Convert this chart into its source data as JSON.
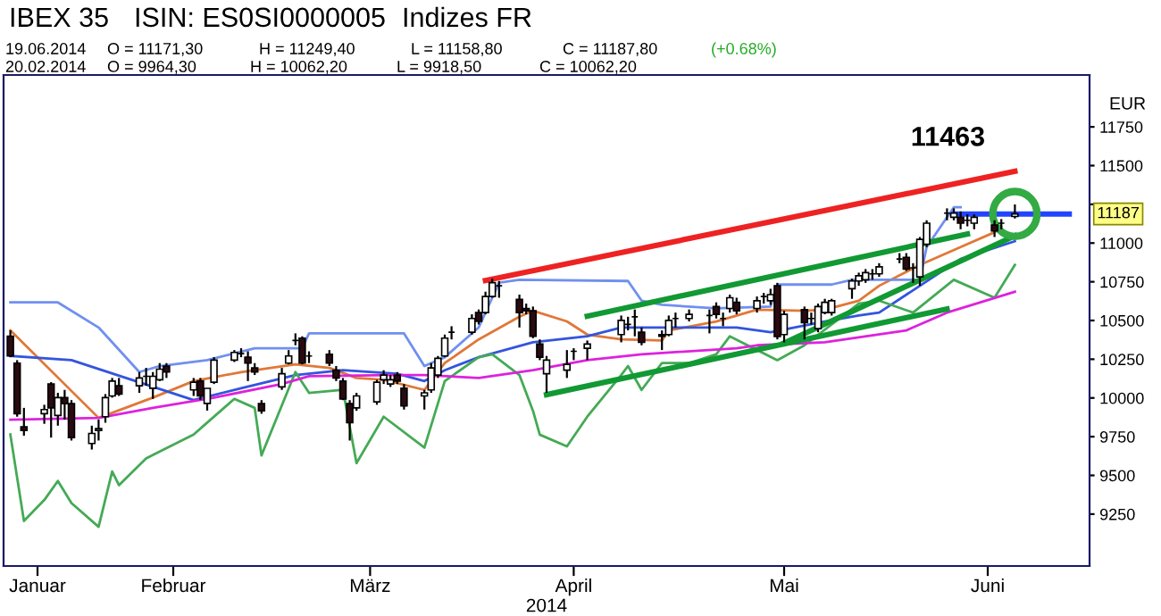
{
  "chart_data": {
    "type": "candlestick",
    "title": "IBEX 35",
    "xlabel": "2014",
    "ylabel": "EUR",
    "x": [
      "2014-01-22",
      "2014-01-23",
      "2014-01-24",
      "2014-01-27",
      "2014-01-28",
      "2014-01-29",
      "2014-01-30",
      "2014-01-31",
      "2014-02-03",
      "2014-02-04",
      "2014-02-05",
      "2014-02-06",
      "2014-02-07",
      "2014-02-10",
      "2014-02-11",
      "2014-02-12",
      "2014-02-13",
      "2014-02-14",
      "2014-02-18",
      "2014-02-19",
      "2014-02-20",
      "2014-02-21",
      "2014-02-24",
      "2014-02-25",
      "2014-02-26",
      "2014-02-27",
      "2014-02-28",
      "2014-03-03",
      "2014-03-04",
      "2014-03-05",
      "2014-03-06",
      "2014-03-07",
      "2014-03-10",
      "2014-03-11",
      "2014-03-12",
      "2014-03-13",
      "2014-03-14",
      "2014-03-17",
      "2014-03-18",
      "2014-03-19",
      "2014-03-20",
      "2014-03-21",
      "2014-03-24",
      "2014-03-25",
      "2014-03-26",
      "2014-03-27",
      "2014-03-28",
      "2014-03-31",
      "2014-04-01",
      "2014-04-02",
      "2014-04-03",
      "2014-04-04",
      "2014-04-07",
      "2014-04-08",
      "2014-04-09",
      "2014-04-10",
      "2014-04-11",
      "2014-04-14",
      "2014-04-15",
      "2014-04-17",
      "2014-04-22",
      "2014-04-23",
      "2014-04-24",
      "2014-04-25",
      "2014-04-28",
      "2014-04-29",
      "2014-04-30",
      "2014-05-02",
      "2014-05-05",
      "2014-05-06",
      "2014-05-07",
      "2014-05-08",
      "2014-05-09",
      "2014-05-12",
      "2014-05-13",
      "2014-05-14",
      "2014-05-15",
      "2014-05-16",
      "2014-05-19",
      "2014-05-20",
      "2014-05-21",
      "2014-05-22",
      "2014-05-23",
      "2014-05-26",
      "2014-05-27",
      "2014-05-28",
      "2014-05-29",
      "2014-05-30",
      "2014-06-02",
      "2014-06-03",
      "2014-06-04",
      "2014-06-05",
      "2014-06-06",
      "2014-06-09",
      "2014-06-10",
      "2014-06-11",
      "2014-06-12",
      "2014-06-13",
      "2014-06-16",
      "2014-06-17",
      "2014-06-19"
    ],
    "ohlc": [
      [
        10398,
        10436,
        10263,
        10271
      ],
      [
        10225,
        10244,
        9879,
        9898
      ],
      [
        9813,
        9936,
        9756,
        9790
      ],
      [
        9898,
        9956,
        9833,
        9925
      ],
      [
        10090,
        10102,
        9744,
        9936
      ],
      [
        9887,
        10033,
        9821,
        10002
      ],
      [
        10002,
        10052,
        9860,
        9963
      ],
      [
        9963,
        9986,
        9725,
        9744
      ],
      [
        9706,
        9821,
        9667,
        9771
      ],
      [
        9790,
        9860,
        9725,
        9802
      ],
      [
        9879,
        10025,
        9840,
        10002
      ],
      [
        10013,
        10129,
        10002,
        10109
      ],
      [
        10079,
        10129,
        10013,
        10025
      ],
      [
        10079,
        10167,
        10033,
        10129
      ],
      [
        10140,
        10194,
        10079,
        10140
      ],
      [
        10063,
        10167,
        9994,
        10140
      ],
      [
        10117,
        10225,
        10109,
        10186
      ],
      [
        10206,
        10225,
        10129,
        10167
      ],
      [
        10052,
        10129,
        10013,
        10102
      ],
      [
        10109,
        10129,
        9986,
        10013
      ],
      [
        9964.3,
        10062.2,
        9918.5,
        10062.2
      ],
      [
        10102,
        10263,
        10090,
        10244
      ],
      [
        10244,
        10309,
        10232,
        10294
      ],
      [
        10286,
        10321,
        10263,
        10286
      ],
      [
        10263,
        10301,
        10109,
        10225
      ],
      [
        10194,
        10225,
        10148,
        10167
      ],
      [
        9963,
        9986,
        9898,
        9917
      ],
      [
        10071,
        10194,
        10052,
        10156
      ],
      [
        10225,
        10309,
        10217,
        10271
      ],
      [
        10371,
        10417,
        10340,
        10371
      ],
      [
        10386,
        10398,
        10217,
        10225
      ],
      [
        10271,
        10301,
        10225,
        10271
      ],
      [
        10282,
        10309,
        10206,
        10225
      ],
      [
        10179,
        10206,
        10109,
        10129
      ],
      [
        10109,
        10129,
        9986,
        9994
      ],
      [
        9963,
        9986,
        9725,
        9840
      ],
      [
        9936,
        10033,
        9917,
        10013
      ],
      [
        9975,
        10117,
        9956,
        10102
      ],
      [
        10117,
        10179,
        10090,
        10148
      ],
      [
        10090,
        10148,
        10071,
        10117
      ],
      [
        10148,
        10167,
        10090,
        10109
      ],
      [
        10063,
        10090,
        9925,
        9948
      ],
      [
        10013,
        10052,
        9925,
        10033
      ],
      [
        10052,
        10225,
        10033,
        10194
      ],
      [
        10148,
        10271,
        10129,
        10256
      ],
      [
        10271,
        10409,
        10263,
        10386
      ],
      [
        10424,
        10463,
        10378,
        10424
      ],
      [
        10424,
        10540,
        10409,
        10513
      ],
      [
        10551,
        10571,
        10474,
        10494
      ],
      [
        10551,
        10686,
        10540,
        10655
      ],
      [
        10655,
        10770,
        10647,
        10744
      ],
      [
        10724,
        10755,
        10647,
        10724
      ],
      [
        10636,
        10667,
        10455,
        10551
      ],
      [
        10578,
        10609,
        10540,
        10563
      ],
      [
        10563,
        10590,
        10386,
        10398
      ],
      [
        10348,
        10378,
        10244,
        10263
      ],
      [
        10156,
        10271,
        10033,
        10244
      ],
      [
        10179,
        10309,
        10129,
        10217
      ],
      [
        10301,
        10321,
        10244,
        10301
      ],
      [
        10321,
        10371,
        10244,
        10348
      ],
      [
        10409,
        10532,
        10359,
        10501
      ],
      [
        10475,
        10524,
        10436,
        10475
      ],
      [
        10524,
        10571,
        10398,
        10524
      ],
      [
        10424,
        10455,
        10340,
        10359
      ],
      [
        10409,
        10436,
        10309,
        10398
      ],
      [
        10409,
        10532,
        10398,
        10501
      ],
      [
        10513,
        10551,
        10455,
        10513
      ],
      [
        10513,
        10571,
        10494,
        10540
      ],
      [
        10532,
        10571,
        10417,
        10532
      ],
      [
        10590,
        10617,
        10513,
        10540
      ],
      [
        10513,
        10551,
        10463,
        10513
      ],
      [
        10578,
        10667,
        10551,
        10647
      ],
      [
        10617,
        10647,
        10540,
        10563
      ],
      [
        10578,
        10655,
        10551,
        10628
      ],
      [
        10655,
        10678,
        10609,
        10655
      ],
      [
        10628,
        10705,
        10601,
        10667
      ],
      [
        10724,
        10743,
        10378,
        10397
      ],
      [
        10409,
        10563,
        10359,
        10540
      ],
      [
        10570,
        10590,
        10378,
        10486
      ],
      [
        10513,
        10551,
        10474,
        10513
      ],
      [
        10447,
        10609,
        10424,
        10590
      ],
      [
        10551,
        10640,
        10540,
        10617
      ],
      [
        10551,
        10640,
        10532,
        10628
      ],
      [
        10705,
        10770,
        10640,
        10755
      ],
      [
        10755,
        10809,
        10724,
        10789
      ],
      [
        10763,
        10832,
        10743,
        10809
      ],
      [
        10801,
        10832,
        10763,
        10801
      ],
      [
        10801,
        10870,
        10782,
        10847
      ],
      [
        10897,
        10935,
        10870,
        10897
      ],
      [
        10908,
        10935,
        10820,
        10832
      ],
      [
        10840,
        10870,
        10743,
        10840
      ],
      [
        10782,
        11039,
        10724,
        11024
      ],
      [
        10993,
        11147,
        10974,
        11128
      ],
      [
        11193,
        11224,
        11147,
        11193
      ],
      [
        11166,
        11224,
        11147,
        11193
      ],
      [
        11166,
        11204,
        11089,
        11128
      ],
      [
        11147,
        11185,
        11108,
        11147
      ],
      [
        11128,
        11185,
        11089,
        11166
      ],
      [
        11116,
        11147,
        11039,
        11078
      ],
      [
        11128,
        11155,
        11089,
        11128
      ],
      [
        11171.3,
        11249.4,
        11158.8,
        11187.8
      ]
    ],
    "series": [
      {
        "type": "line",
        "color": "#e07838",
        "x": [
          "2014-01-22",
          "2014-02-04",
          "2014-02-12",
          "2014-02-18",
          "2014-02-25",
          "2014-03-05",
          "2014-03-10",
          "2014-03-14",
          "2014-03-18",
          "2014-03-24",
          "2014-03-27",
          "2014-04-01",
          "2014-04-07",
          "2014-04-09",
          "2014-04-14",
          "2014-04-17",
          "2014-04-22",
          "2014-04-28",
          "2014-04-29",
          "2014-05-06",
          "2014-05-12",
          "2014-05-19",
          "2014-05-22",
          "2014-05-27",
          "2014-05-30",
          "2014-06-05",
          "2014-06-11",
          "2014-06-16",
          "2014-06-17"
        ],
        "values": [
          10436,
          9871,
          10002,
          10109,
          10167,
          10217,
          10194,
          10129,
          10117,
          10052,
          10225,
          10378,
          10524,
          10563,
          10494,
          10409,
          10378,
          10371,
          10436,
          10494,
          10570,
          10563,
          10570,
          10628,
          10724,
          10859,
          10974,
          11070,
          11108
        ]
      },
      {
        "type": "line",
        "color": "#7090f0",
        "x": [
          "2014-01-22",
          "2014-01-29",
          "2014-02-04",
          "2014-02-10",
          "2014-02-13",
          "2014-02-20",
          "2014-02-27",
          "2014-03-06",
          "2014-03-07",
          "2014-03-21",
          "2014-03-24",
          "2014-03-27",
          "2014-04-01",
          "2014-04-04",
          "2014-04-07",
          "2014-04-23",
          "2014-04-25",
          "2014-04-28",
          "2014-05-06",
          "2014-05-14",
          "2014-05-15",
          "2014-05-23",
          "2014-05-26",
          "2014-06-05",
          "2014-06-06",
          "2014-06-10",
          "2014-06-11"
        ],
        "values": [
          10617,
          10617,
          10455,
          10167,
          10206,
          10244,
          10321,
          10321,
          10417,
          10417,
          10206,
          10263,
          10455,
          10744,
          10763,
          10755,
          10628,
          10601,
          10578,
          10590,
          10732,
          10732,
          10763,
          10763,
          10974,
          11231,
          11231
        ]
      },
      {
        "type": "line",
        "color": "#3355dd",
        "x": [
          "2014-01-22",
          "2014-01-31",
          "2014-02-18",
          "2014-02-25",
          "2014-03-05",
          "2014-03-12",
          "2014-03-20",
          "2014-03-24",
          "2014-03-27",
          "2014-04-01",
          "2014-04-09",
          "2014-04-17",
          "2014-04-22",
          "2014-05-09",
          "2014-05-14",
          "2014-05-22",
          "2014-05-27",
          "2014-05-30",
          "2014-06-05",
          "2014-06-11",
          "2014-06-19"
        ],
        "values": [
          10271,
          10244,
          9986,
          10063,
          10148,
          10179,
          10156,
          10109,
          10179,
          10263,
          10359,
          10398,
          10455,
          10455,
          10424,
          10494,
          10532,
          10551,
          10724,
          10897,
          11012
        ]
      },
      {
        "type": "line",
        "color": "#44aa55",
        "x": [
          "2014-01-22",
          "2014-01-24",
          "2014-01-27",
          "2014-01-29",
          "2014-01-31",
          "2014-02-04",
          "2014-02-06",
          "2014-02-07",
          "2014-02-11",
          "2014-02-18",
          "2014-02-20",
          "2014-02-24",
          "2014-02-27",
          "2014-02-28",
          "2014-03-05",
          "2014-03-07",
          "2014-03-12",
          "2014-03-14",
          "2014-03-18",
          "2014-03-24",
          "2014-03-27",
          "2014-04-01",
          "2014-04-03",
          "2014-04-07",
          "2014-04-09",
          "2014-04-10",
          "2014-04-14",
          "2014-04-17",
          "2014-04-22",
          "2014-04-23",
          "2014-04-25",
          "2014-04-28",
          "2014-05-02",
          "2014-05-06",
          "2014-05-08",
          "2014-05-15",
          "2014-05-19",
          "2014-05-27",
          "2014-05-30",
          "2014-06-04",
          "2014-06-10",
          "2014-06-16",
          "2014-06-19"
        ],
        "values": [
          9764,
          9206,
          9341,
          9464,
          9321,
          9168,
          9525,
          9437,
          9610,
          9764,
          9841,
          9994,
          9936,
          9629,
          10167,
          10033,
          10052,
          9579,
          9879,
          9679,
          10109,
          10263,
          10282,
          10148,
          9917,
          9763,
          9687,
          9879,
          10148,
          10206,
          10052,
          10225,
          10225,
          10282,
          10398,
          10244,
          10340,
          10609,
          10628,
          10551,
          10763,
          10647,
          10859
        ]
      },
      {
        "type": "line",
        "color": "#dd22dd",
        "x": [
          "2014-01-22",
          "2014-02-04",
          "2014-02-12",
          "2014-02-21",
          "2014-03-03",
          "2014-03-07",
          "2014-03-19",
          "2014-03-24",
          "2014-04-01",
          "2014-04-09",
          "2014-04-17",
          "2014-04-25",
          "2014-05-09",
          "2014-05-12",
          "2014-05-22",
          "2014-06-03",
          "2014-06-09",
          "2014-06-19"
        ],
        "values": [
          9860,
          9871,
          9936,
          10002,
          10090,
          10140,
          10148,
          10148,
          10129,
          10179,
          10244,
          10282,
          10321,
          10340,
          10359,
          10436,
          10551,
          10686
        ]
      },
      {
        "type": "line",
        "color": "#ee2222",
        "x": [
          "2014-04-02",
          "2014-06-19"
        ],
        "values": [
          10758,
          11463
        ]
      },
      {
        "type": "line",
        "color": "#119933",
        "x": [
          "2014-04-17",
          "2014-06-12"
        ],
        "values": [
          10528,
          11058
        ]
      },
      {
        "type": "line",
        "color": "#119933",
        "x": [
          "2014-04-11",
          "2014-06-09"
        ],
        "values": [
          10021,
          10574
        ]
      },
      {
        "type": "line",
        "color": "#119933",
        "x": [
          "2014-05-16",
          "2014-06-19"
        ],
        "values": [
          10355,
          11047
        ]
      },
      {
        "type": "line",
        "color": "#2244ff",
        "x": [
          "2014-06-10",
          "2014-06-27"
        ],
        "values": [
          11187,
          11187
        ]
      }
    ],
    "xlim": [
      "2014-01-21",
      "2014-06-30"
    ],
    "xticks": [
      {
        "value": "2014-01-26",
        "label": "Januar"
      },
      {
        "value": "2014-02-15",
        "label": "Februar"
      },
      {
        "value": "2014-03-16",
        "label": "März"
      },
      {
        "value": "2014-04-15",
        "label": "April"
      },
      {
        "value": "2014-05-16",
        "label": "Mai"
      },
      {
        "value": "2014-06-15",
        "label": "Juni"
      }
    ],
    "ylim": [
      8915,
      12085
    ],
    "yticks": [
      9250,
      9500,
      9750,
      10000,
      10250,
      10500,
      10750,
      11000,
      {
        "value": 11250,
        "label": null
      },
      11500,
      11750
    ],
    "grid": false,
    "legend": false,
    "annotations": [
      "ISIN: ES0SI0000005",
      "Indizes FR",
      "19.06.2014",
      "O = 11171,30",
      "H = 11249,40",
      "L = 11158,80",
      "C = 11187,80",
      "(+0.68%)",
      "20.02.2014",
      "O = 9964,30",
      "H = 10062,20",
      "L = 9918,50",
      "C = 10062,20",
      {
        "text": "11463",
        "x": "2014-06-19",
        "y": 11463
      },
      "11187"
    ]
  }
}
